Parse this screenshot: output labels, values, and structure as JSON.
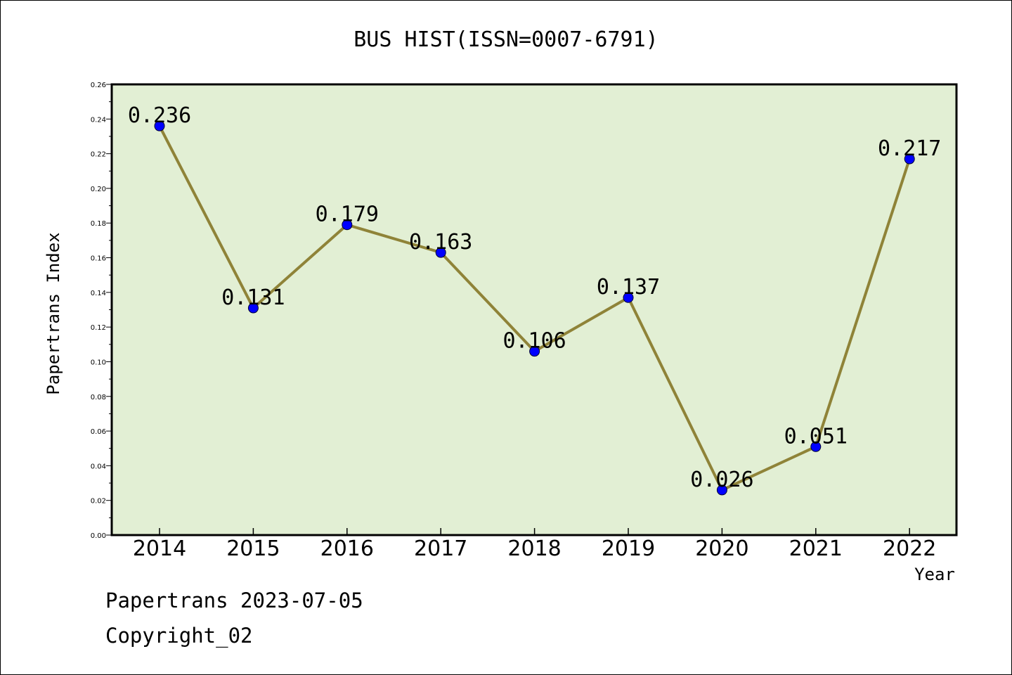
{
  "chart_data": {
    "type": "line",
    "title": "BUS HIST(ISSN=0007-6791)",
    "xlabel": "Year",
    "ylabel": "Papertrans Index",
    "categories": [
      "2014",
      "2015",
      "2016",
      "2017",
      "2018",
      "2019",
      "2020",
      "2021",
      "2022"
    ],
    "series": [
      {
        "values": [
          0.236,
          0.131,
          0.179,
          0.163,
          0.106,
          0.137,
          0.026,
          0.051,
          0.217
        ]
      }
    ],
    "data_labels": [
      "0.236",
      "0.131",
      "0.179",
      "0.163",
      "0.106",
      "0.137",
      "0.026",
      "0.051",
      "0.217"
    ],
    "ylim": [
      0,
      0.26
    ],
    "yticks": [
      "0.00",
      "0.02",
      "0.04",
      "0.06",
      "0.08",
      "0.10",
      "0.12",
      "0.14",
      "0.16",
      "0.18",
      "0.20",
      "0.22",
      "0.24",
      "0.26"
    ],
    "grid": false,
    "colors": {
      "plot_background": "#e2efd4",
      "line": "#8f8338",
      "marker": "#0000ff"
    }
  },
  "footer": {
    "line1": "Papertrans 2023-07-05",
    "line2": "Copyright_02"
  }
}
